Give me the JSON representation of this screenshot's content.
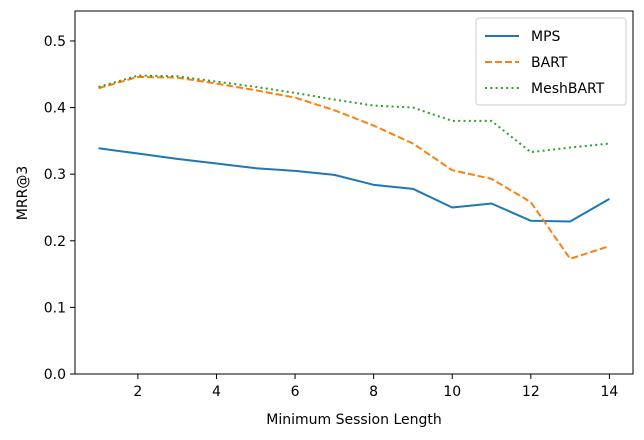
{
  "chart_data": {
    "type": "line",
    "title": "",
    "xlabel": "Minimum Session Length",
    "ylabel": "MRR@3",
    "x": [
      1,
      2,
      3,
      4,
      5,
      6,
      7,
      8,
      9,
      10,
      11,
      12,
      13,
      14
    ],
    "xlim": [
      0.4,
      14.6
    ],
    "ylim": [
      0.0,
      0.545
    ],
    "xticks": [
      2,
      4,
      6,
      8,
      10,
      12,
      14
    ],
    "yticks": [
      0.0,
      0.1,
      0.2,
      0.3,
      0.4,
      0.5
    ],
    "ytick_labels": [
      "0.0",
      "0.1",
      "0.2",
      "0.3",
      "0.4",
      "0.5"
    ],
    "grid": false,
    "legend_position": "top-right",
    "series": [
      {
        "name": "MPS",
        "color": "#1f77b4",
        "style": "solid",
        "values": [
          0.339,
          0.331,
          0.323,
          0.316,
          0.309,
          0.305,
          0.299,
          0.284,
          0.278,
          0.25,
          0.256,
          0.23,
          0.229,
          0.263
        ]
      },
      {
        "name": "BART",
        "color": "#ff7f0e",
        "style": "dashed",
        "values": [
          0.429,
          0.446,
          0.445,
          0.436,
          0.426,
          0.415,
          0.396,
          0.373,
          0.346,
          0.306,
          0.293,
          0.258,
          0.173,
          0.192
        ]
      },
      {
        "name": "MeshBART",
        "color": "#2ca02c",
        "style": "dotted",
        "values": [
          0.431,
          0.448,
          0.447,
          0.439,
          0.431,
          0.422,
          0.412,
          0.403,
          0.4,
          0.38,
          0.38,
          0.333,
          0.34,
          0.346
        ]
      }
    ]
  }
}
